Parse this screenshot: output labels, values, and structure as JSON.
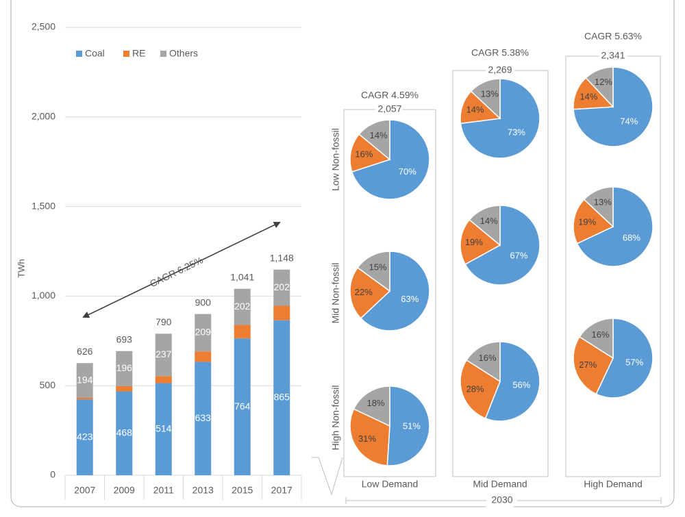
{
  "colors": {
    "coal": "#5b9bd5",
    "re": "#ed7d31",
    "others": "#a5a5a5",
    "grid": "#d9d9d9",
    "text": "#595959",
    "box": "#bfbfbf"
  },
  "chart_data": [
    {
      "type": "bar",
      "stacked": true,
      "ylabel": "TWh",
      "ylim": [
        0,
        2500
      ],
      "y_ticks": [
        "0",
        "500",
        "1,000",
        "1,500",
        "2,000",
        "2,500"
      ],
      "y_tick_values": [
        0,
        500,
        1000,
        1500,
        2000,
        2500
      ],
      "categories": [
        "2007",
        "2009",
        "2011",
        "2013",
        "2015",
        "2017"
      ],
      "legend": [
        "Coal",
        "RE",
        "Others"
      ],
      "legend_position": "top-left",
      "series": [
        {
          "name": "Coal",
          "values": [
            423,
            468,
            514,
            633,
            764,
            865
          ],
          "labels": [
            "423",
            "468",
            "514",
            "633",
            "764",
            "865"
          ]
        },
        {
          "name": "RE",
          "values": [
            9,
            29,
            39,
            58,
            75,
            81
          ]
        },
        {
          "name": "Others",
          "values": [
            194,
            196,
            237,
            209,
            202,
            202
          ],
          "labels": [
            "194",
            "196",
            "237",
            "209",
            "202",
            "202"
          ]
        }
      ],
      "totals": [
        "626",
        "693",
        "790",
        "900",
        "1,041",
        "1,148"
      ],
      "total_values": [
        626,
        693,
        790,
        900,
        1041,
        1148
      ],
      "annotation": "CAGR 6.25%"
    },
    {
      "type": "pie",
      "title": "2030",
      "columns": [
        "Low Demand",
        "Mid Demand",
        "High Demand"
      ],
      "rows": [
        "Low Non-fossil",
        "Mid Non-fossil",
        "High Non-fossil"
      ],
      "column_totals": [
        "2,057",
        "2,269",
        "2,341"
      ],
      "column_cagr": [
        "CAGR 4.59%",
        "CAGR 5.38%",
        "CAGR 5.63%"
      ],
      "slice_order": [
        "Coal",
        "RE",
        "Others"
      ],
      "pies": [
        [
          {
            "values": [
              70,
              16,
              14
            ],
            "labels": [
              "70%",
              "16%",
              "14%"
            ]
          },
          {
            "values": [
              63,
              22,
              15
            ],
            "labels": [
              "63%",
              "22%",
              "15%"
            ]
          },
          {
            "values": [
              51,
              31,
              18
            ],
            "labels": [
              "51%",
              "31%",
              "18%"
            ]
          }
        ],
        [
          {
            "values": [
              73,
              14,
              13
            ],
            "labels": [
              "73%",
              "14%",
              "13%"
            ]
          },
          {
            "values": [
              67,
              19,
              14
            ],
            "labels": [
              "67%",
              "19%",
              "14%"
            ]
          },
          {
            "values": [
              56,
              28,
              16
            ],
            "labels": [
              "56%",
              "28%",
              "16%"
            ]
          }
        ],
        [
          {
            "values": [
              74,
              14,
              12
            ],
            "labels": [
              "74%",
              "14%",
              "12%"
            ]
          },
          {
            "values": [
              68,
              19,
              13
            ],
            "labels": [
              "68%",
              "19%",
              "13%"
            ]
          },
          {
            "values": [
              57,
              27,
              16
            ],
            "labels": [
              "57%",
              "27%",
              "16%"
            ]
          }
        ]
      ]
    }
  ]
}
